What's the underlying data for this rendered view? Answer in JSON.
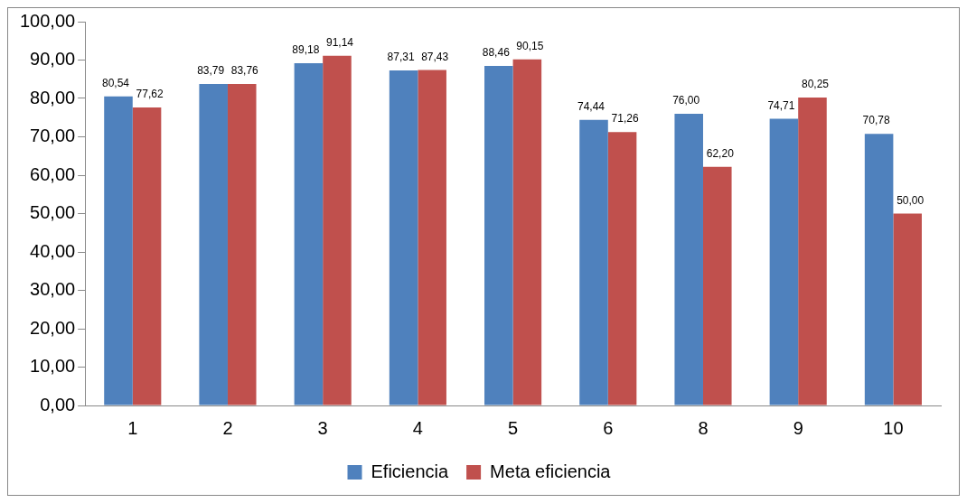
{
  "chart_data": {
    "type": "bar",
    "categories": [
      "1",
      "2",
      "3",
      "4",
      "5",
      "6",
      "8",
      "9",
      "10"
    ],
    "series": [
      {
        "name": "Eficiencia",
        "color": "#4f81bd",
        "values": [
          80.54,
          83.79,
          89.18,
          87.31,
          88.46,
          74.44,
          76.0,
          74.71,
          70.78
        ],
        "value_labels": [
          "80,54",
          "83,79",
          "89,18",
          "87,31",
          "88,46",
          "74,44",
          "76,00",
          "74,71",
          "70,78"
        ]
      },
      {
        "name": "Meta eficiencia",
        "color": "#c0504d",
        "values": [
          77.62,
          83.76,
          91.14,
          87.43,
          90.15,
          71.26,
          62.2,
          80.25,
          50.0
        ],
        "value_labels": [
          "77,62",
          "83,76",
          "91,14",
          "87,43",
          "90,15",
          "71,26",
          "62,20",
          "80,25",
          "50,00"
        ]
      }
    ],
    "ylim": [
      0,
      100
    ],
    "yticks": [
      {
        "value": 0,
        "label": "0,00"
      },
      {
        "value": 10,
        "label": "10,00"
      },
      {
        "value": 20,
        "label": "20,00"
      },
      {
        "value": 30,
        "label": "30,00"
      },
      {
        "value": 40,
        "label": "40,00"
      },
      {
        "value": 50,
        "label": "50,00"
      },
      {
        "value": 60,
        "label": "60,00"
      },
      {
        "value": 70,
        "label": "70,00"
      },
      {
        "value": 80,
        "label": "80,00"
      },
      {
        "value": 90,
        "label": "90,00"
      },
      {
        "value": 100,
        "label": "100,00"
      }
    ],
    "grid": false,
    "legend": "bottom"
  }
}
